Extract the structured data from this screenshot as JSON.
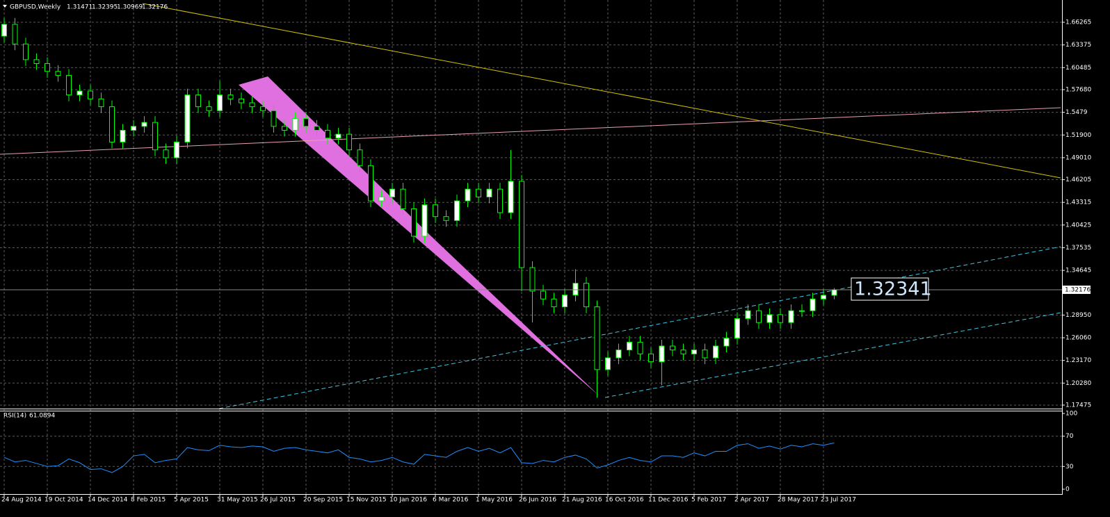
{
  "chart_data": [
    {
      "type": "candlestick",
      "title": "GBPUSD,Weekly",
      "annotation": "1.32341",
      "categories": [
        "24 Aug 2014",
        null,
        null,
        null,
        "19 Oct 2014",
        null,
        null,
        null,
        "14 Dec 2014",
        null,
        null,
        null,
        "8 Feb 2015",
        null,
        null,
        null,
        "5 Apr 2015",
        null,
        null,
        null,
        "31 May 2015",
        null,
        null,
        null,
        "26 Jul 2015",
        null,
        null,
        null,
        "20 Sep 2015",
        null,
        null,
        null,
        "15 Nov 2015",
        null,
        null,
        null,
        "10 Jan 2016",
        null,
        null,
        null,
        "6 Mar 2016",
        null,
        null,
        null,
        "1 May 2016",
        null,
        null,
        null,
        "26 Jun 2016",
        null,
        null,
        null,
        "21 Aug 2016",
        null,
        null,
        null,
        "16 Oct 2016",
        null,
        null,
        null,
        "11 Dec 2016",
        null,
        null,
        null,
        "5 Feb 2017",
        null,
        null,
        null,
        "2 Apr 2017",
        null,
        null,
        null,
        "28 May 2017",
        null,
        null,
        null,
        "23 Jul 2017",
        null
      ],
      "open": [
        1.645,
        1.66,
        1.635,
        1.615,
        1.61,
        1.6,
        1.595,
        1.57,
        1.575,
        1.565,
        1.555,
        1.51,
        1.525,
        1.53,
        1.535,
        1.5,
        1.49,
        1.51,
        1.57,
        1.555,
        1.55,
        1.57,
        1.565,
        1.56,
        1.555,
        1.55,
        1.53,
        1.525,
        1.54,
        1.53,
        1.525,
        1.515,
        1.52,
        1.5,
        1.48,
        1.435,
        1.44,
        1.45,
        1.425,
        1.39,
        1.43,
        1.415,
        1.41,
        1.435,
        1.45,
        1.44,
        1.45,
        1.42,
        1.46,
        1.35,
        1.32,
        1.31,
        1.3,
        1.315,
        1.33,
        1.3,
        1.22,
        1.235,
        1.245,
        1.255,
        1.24,
        1.23,
        1.25,
        1.245,
        1.24,
        1.245,
        1.235,
        1.25,
        1.26,
        1.285,
        1.295,
        1.28,
        1.29,
        1.28,
        1.295,
        1.295,
        1.31,
        1.31471
      ],
      "high": [
        1.668,
        1.668,
        1.643,
        1.623,
        1.618,
        1.608,
        1.603,
        1.583,
        1.583,
        1.573,
        1.563,
        1.533,
        1.538,
        1.543,
        1.543,
        1.508,
        1.518,
        1.578,
        1.578,
        1.563,
        1.588,
        1.578,
        1.573,
        1.568,
        1.563,
        1.558,
        1.538,
        1.548,
        1.548,
        1.538,
        1.533,
        1.528,
        1.528,
        1.508,
        1.488,
        1.448,
        1.458,
        1.458,
        1.433,
        1.438,
        1.438,
        1.423,
        1.443,
        1.458,
        1.458,
        1.458,
        1.458,
        1.5,
        1.468,
        1.358,
        1.328,
        1.318,
        1.323,
        1.348,
        1.338,
        1.308,
        1.243,
        1.253,
        1.263,
        1.263,
        1.248,
        1.258,
        1.258,
        1.253,
        1.253,
        1.253,
        1.258,
        1.268,
        1.293,
        1.303,
        1.303,
        1.298,
        1.298,
        1.303,
        1.303,
        1.318,
        1.3227,
        1.32395
      ],
      "low": [
        1.637,
        1.627,
        1.607,
        1.602,
        1.592,
        1.587,
        1.562,
        1.562,
        1.557,
        1.547,
        1.502,
        1.502,
        1.517,
        1.522,
        1.492,
        1.482,
        1.482,
        1.502,
        1.547,
        1.542,
        1.542,
        1.557,
        1.552,
        1.547,
        1.542,
        1.522,
        1.517,
        1.517,
        1.522,
        1.517,
        1.507,
        1.507,
        1.492,
        1.472,
        1.427,
        1.427,
        1.432,
        1.417,
        1.382,
        1.382,
        1.407,
        1.402,
        1.402,
        1.427,
        1.432,
        1.432,
        1.412,
        1.412,
        1.32,
        1.28,
        1.302,
        1.292,
        1.292,
        1.307,
        1.292,
        1.184,
        1.212,
        1.227,
        1.237,
        1.232,
        1.222,
        1.2,
        1.237,
        1.232,
        1.232,
        1.227,
        1.227,
        1.242,
        1.252,
        1.277,
        1.272,
        1.272,
        1.272,
        1.272,
        1.287,
        1.287,
        1.302,
        1.30969
      ],
      "close": [
        1.66,
        1.635,
        1.615,
        1.61,
        1.6,
        1.595,
        1.57,
        1.575,
        1.565,
        1.555,
        1.51,
        1.525,
        1.53,
        1.535,
        1.5,
        1.49,
        1.51,
        1.57,
        1.555,
        1.55,
        1.57,
        1.565,
        1.56,
        1.555,
        1.55,
        1.53,
        1.525,
        1.54,
        1.53,
        1.525,
        1.515,
        1.52,
        1.5,
        1.48,
        1.435,
        1.44,
        1.45,
        1.425,
        1.39,
        1.43,
        1.415,
        1.41,
        1.435,
        1.45,
        1.44,
        1.45,
        1.42,
        1.46,
        1.35,
        1.32,
        1.31,
        1.3,
        1.315,
        1.33,
        1.3,
        1.22,
        1.235,
        1.245,
        1.255,
        1.24,
        1.23,
        1.25,
        1.245,
        1.24,
        1.245,
        1.235,
        1.25,
        1.26,
        1.285,
        1.295,
        1.28,
        1.29,
        1.28,
        1.295,
        1.295,
        1.31,
        1.3147,
        1.32176
      ],
      "up_color": "#ffffff",
      "down_color": "#000000",
      "wick_color": "#00ff00",
      "ylim": [
        1.1703,
        1.6866
      ],
      "yticks": [
        1.66265,
        1.63375,
        1.60485,
        {
          "value": 1.5768,
          "label": "1.57680"
        },
        1.5479,
        {
          "value": 1.519,
          "label": "1.51900"
        },
        {
          "value": 1.4901,
          "label": "1.49010"
        },
        1.46205,
        1.43315,
        1.40425,
        1.37535,
        1.34645,
        {
          "value": 1.2895,
          "label": "1.28950"
        },
        {
          "value": 1.2606,
          "label": "1.26060"
        },
        {
          "value": 1.2317,
          "label": "1.23170"
        },
        {
          "value": 1.2028,
          "label": "1.20280"
        },
        1.17475
      ],
      "grid": true
    },
    {
      "type": "line",
      "title": "RSI(14)",
      "color": "#1e90ff",
      "values": [
        42,
        36,
        38,
        34,
        30,
        31,
        40,
        35,
        26,
        27,
        22,
        30,
        44,
        46,
        35,
        38,
        40,
        55,
        52,
        51,
        58,
        56,
        55,
        57,
        56,
        50,
        54,
        55,
        52,
        50,
        48,
        52,
        42,
        40,
        36,
        38,
        42,
        36,
        33,
        46,
        44,
        42,
        50,
        55,
        50,
        54,
        48,
        55,
        35,
        34,
        38,
        36,
        42,
        45,
        40,
        28,
        32,
        38,
        42,
        38,
        36,
        44,
        44,
        42,
        48,
        44,
        50,
        50,
        58,
        60,
        54,
        57,
        53,
        58,
        56,
        60,
        58,
        61.0894
      ],
      "ylim": [
        0,
        100
      ],
      "yticks": [
        100,
        70,
        30,
        0
      ],
      "grid": true
    }
  ]
}
